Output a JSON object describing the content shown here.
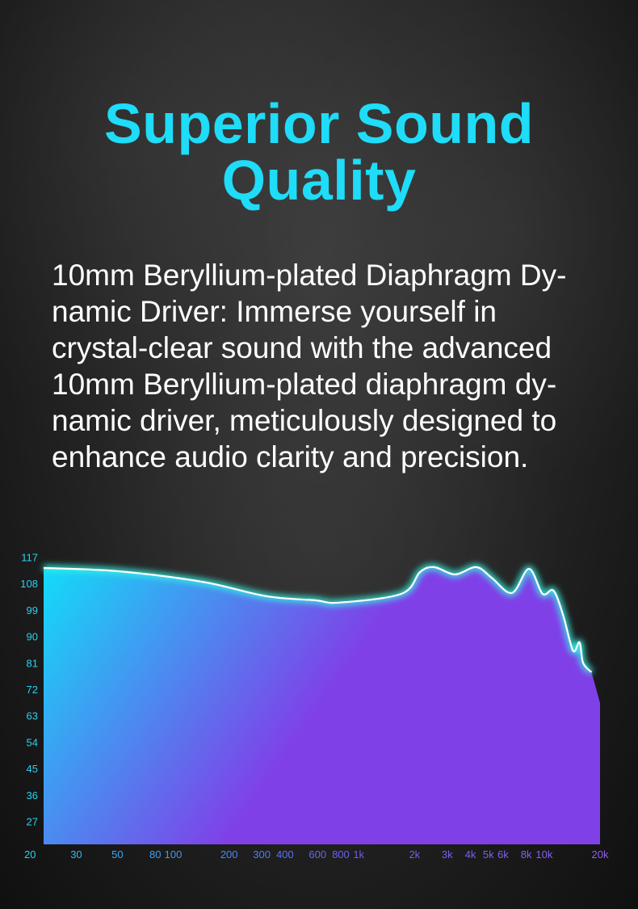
{
  "header": {
    "title_lines": [
      "Superior Sound",
      "Quality"
    ]
  },
  "description": {
    "lines": [
      "10mm Beryllium-plated Diaphragm Dy-",
      "namic Driver: Immerse yourself in",
      "crystal-clear sound with the advanced",
      "10mm Beryllium-plated diaphragm dy-",
      "namic driver, meticulously designed to",
      "enhance audio clarity and precision."
    ]
  },
  "colors": {
    "title": "#1fdcf8",
    "fill_start": "#12dcf8",
    "fill_end": "#8040e8",
    "line_glow": "#30f0e0",
    "line": "#ffffff"
  },
  "chart_data": {
    "type": "area",
    "x_scale": "log",
    "xlim": [
      20,
      20000
    ],
    "ylim": [
      20,
      117
    ],
    "grid": false,
    "y_ticks": [
      "117",
      "108",
      "99",
      "90",
      "81",
      "72",
      "63",
      "54",
      "45",
      "36",
      "27",
      "20"
    ],
    "y_tick_values": [
      117,
      108,
      99,
      90,
      81,
      72,
      63,
      54,
      45,
      36,
      27,
      20
    ],
    "x_ticks": [
      "20",
      "30",
      "50",
      "80",
      "100",
      "200",
      "300",
      "400",
      "600",
      "800",
      "1k",
      "2k",
      "3k",
      "4k",
      "5k",
      "6k",
      "8k",
      "10k",
      "20k"
    ],
    "x_tick_values": [
      20,
      30,
      50,
      80,
      100,
      200,
      300,
      400,
      600,
      800,
      1000,
      2000,
      3000,
      4000,
      5000,
      6000,
      8000,
      10000,
      20000
    ],
    "series": [
      {
        "x": [
          20,
          50,
          143,
          317,
          581,
          784,
          1700,
          2140,
          2550,
          3300,
          4300,
          5200,
          6700,
          8280,
          9800,
          11200,
          12600,
          14300,
          15500,
          16200,
          18000
        ],
        "y": [
          113.3,
          112.2,
          108.6,
          103.7,
          102.3,
          101.5,
          104.5,
          111.9,
          113.6,
          111.1,
          113.6,
          110,
          104.8,
          113,
          104.5,
          105.6,
          97.6,
          85.2,
          88,
          81,
          77.8
        ]
      }
    ],
    "fill_end_point": {
      "x": 20000,
      "y": 67.3
    }
  }
}
